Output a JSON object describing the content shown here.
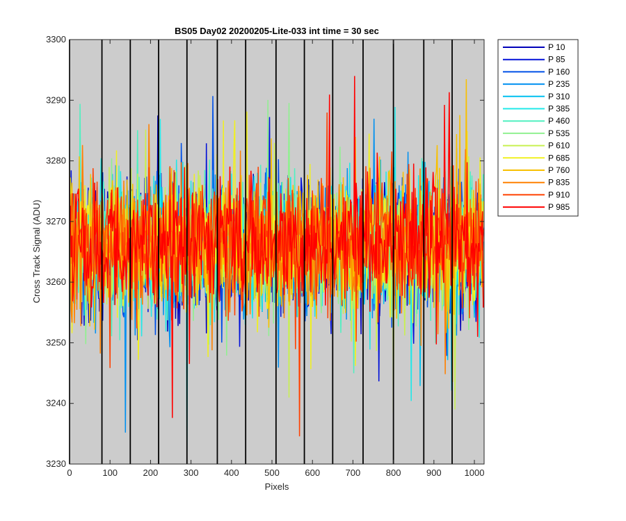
{
  "chart_data": {
    "type": "line",
    "title": "BS05 Day02 20200205-Lite-033 int time = 30 sec",
    "xlabel": "Pixels",
    "ylabel": "Cross Track Signal (ADU)",
    "xlim": [
      0,
      1024
    ],
    "ylim": [
      3230,
      3300
    ],
    "xticks": [
      0,
      100,
      200,
      300,
      400,
      500,
      600,
      700,
      800,
      900,
      1000
    ],
    "yticks": [
      3230,
      3240,
      3250,
      3260,
      3270,
      3280,
      3290,
      3300
    ],
    "xtick_labels": [
      "0",
      "100",
      "200",
      "300",
      "400",
      "500",
      "600",
      "700",
      "800",
      "900",
      "1000"
    ],
    "ytick_labels": [
      "3230",
      "3240",
      "3250",
      "3260",
      "3270",
      "3280",
      "3290",
      "3300"
    ],
    "background": "#cccccc",
    "grid": false,
    "vertical_markers": [
      0,
      80,
      150,
      220,
      290,
      365,
      435,
      510,
      580,
      650,
      725,
      800,
      875,
      945
    ],
    "legend_position": "outside-top-right",
    "noise_model": {
      "mean": 3266,
      "approx_range": [
        3231,
        3294
      ]
    },
    "series": [
      {
        "name": "P 10",
        "color": "#0000b8",
        "mean": 3265.5
      },
      {
        "name": "P 85",
        "color": "#0010d8",
        "mean": 3265.6
      },
      {
        "name": "P 160",
        "color": "#0050e8",
        "mean": 3265.7
      },
      {
        "name": "P 235",
        "color": "#0090f0",
        "mean": 3265.8
      },
      {
        "name": "P 310",
        "color": "#00c0f0",
        "mean": 3265.9
      },
      {
        "name": "P 385",
        "color": "#20e8e8",
        "mean": 3266.0
      },
      {
        "name": "P 460",
        "color": "#50f0c0",
        "mean": 3266.0
      },
      {
        "name": "P 535",
        "color": "#90f090",
        "mean": 3266.1
      },
      {
        "name": "P 610",
        "color": "#c8f050",
        "mean": 3266.1
      },
      {
        "name": "P 685",
        "color": "#f0f020",
        "mean": 3266.2
      },
      {
        "name": "P 760",
        "color": "#f8c000",
        "mean": 3266.2
      },
      {
        "name": "P 835",
        "color": "#ff8000",
        "mean": 3266.3
      },
      {
        "name": "P 910",
        "color": "#ff4000",
        "mean": 3266.3
      },
      {
        "name": "P 985",
        "color": "#ff0000",
        "mean": 3266.4
      }
    ]
  }
}
